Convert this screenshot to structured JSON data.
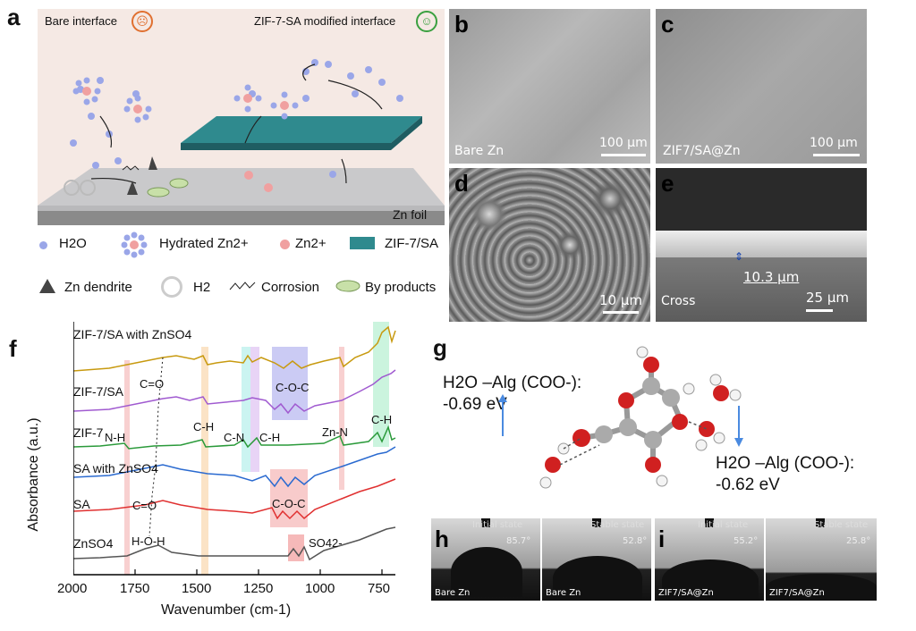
{
  "panels": {
    "a": "a",
    "b": "b",
    "c": "c",
    "d": "d",
    "e": "e",
    "f": "f",
    "g": "g",
    "h": "h",
    "i": "i"
  },
  "schematic": {
    "bare_title": "Bare interface",
    "modified_title": "ZIF-7-SA modified interface",
    "foil_label": "Zn foil",
    "legend": {
      "h2o": "H2O",
      "hydrated": "Hydrated Zn2+",
      "zn": "Zn2+",
      "zif": "ZIF-7/SA",
      "dendrite": "Zn dendrite",
      "h2": "H2",
      "corrosion": "Corrosion",
      "byproducts": "By products"
    }
  },
  "sem": {
    "b": {
      "label": "Bare Zn",
      "scale": "100 μm"
    },
    "c": {
      "label": "ZIF7/SA@Zn",
      "scale": "100 μm"
    },
    "d": {
      "label": "",
      "scale": "10 μm"
    },
    "e": {
      "label": "Cross",
      "scale": "25 μm",
      "thickness": "10.3 μm"
    }
  },
  "chart_data": {
    "type": "line",
    "title": "",
    "xlabel": "Wavenumber (cm-1)",
    "ylabel": "Absorbance (a.u.)",
    "xlim": [
      2000,
      700
    ],
    "xticks": [
      2000,
      1750,
      1500,
      1250,
      1000,
      750
    ],
    "series": [
      {
        "name": "ZIF-7/SA with ZnSO4",
        "color": "#c89a10"
      },
      {
        "name": "ZIF-7/SA",
        "color": "#a05ad0"
      },
      {
        "name": "ZIF-7",
        "color": "#2a9a3a"
      },
      {
        "name": "SA with ZnSO4",
        "color": "#2a6ad0"
      },
      {
        "name": "SA",
        "color": "#e03030"
      },
      {
        "name": "ZnSO4",
        "color": "#555555"
      }
    ],
    "annotations": [
      "C=O",
      "C-O-C",
      "N-H",
      "C-H",
      "C-N",
      "C-H",
      "Zn-N",
      "C-H",
      "C=O",
      "C-O-C",
      "H-O-H",
      "SO42-"
    ]
  },
  "model": {
    "left_label": "H2O –Alg (COO-):",
    "left_value": "-0.69 eV",
    "right_label": "H2O –Alg (COO-):",
    "right_value": "-0.62 eV"
  },
  "contact": {
    "h_left": {
      "state": "Initial state",
      "angle": "85.7°",
      "label": "Bare Zn"
    },
    "h_right": {
      "state": "Stable state",
      "angle": "52.8°",
      "label": "Bare Zn"
    },
    "i_left": {
      "state": "Initial state",
      "angle": "55.2°",
      "label": "ZIF7/SA@Zn"
    },
    "i_right": {
      "state": "Stable state",
      "angle": "25.8°",
      "label": "ZIF7/SA@Zn"
    }
  }
}
